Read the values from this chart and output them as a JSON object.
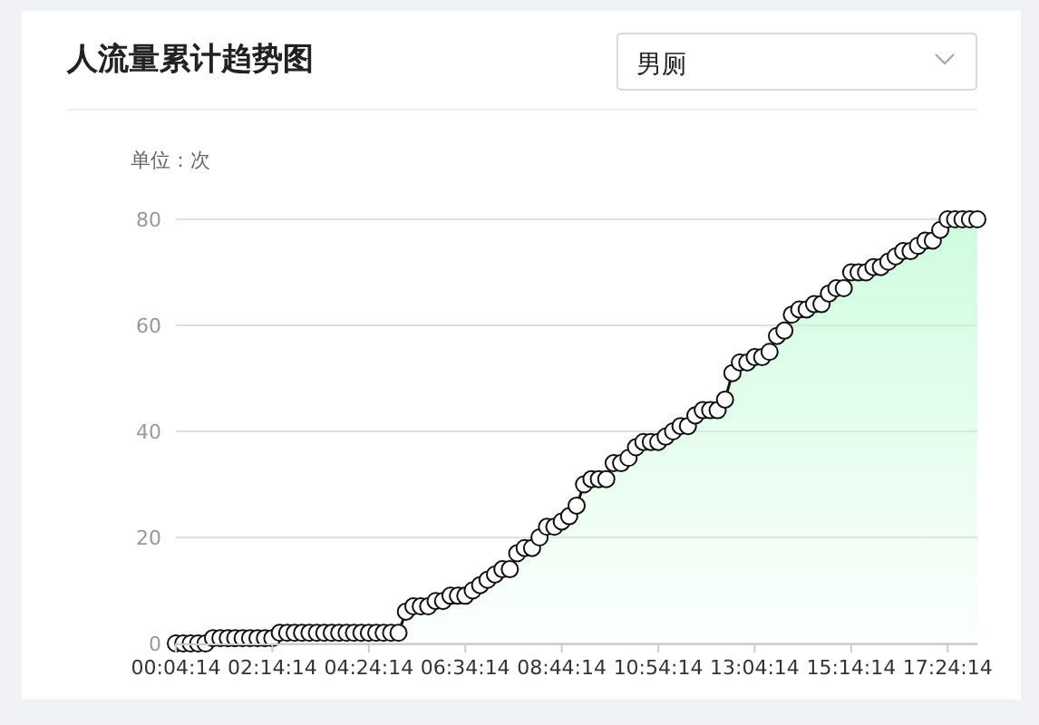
{
  "chart_data": {
    "type": "area",
    "title": "人流量累计趋势图",
    "subtitle": "男厕",
    "ylabel": "单位：次",
    "categories": [
      "00:04:14",
      null,
      null,
      null,
      null,
      null,
      null,
      null,
      null,
      null,
      null,
      null,
      null,
      "02:14:14",
      null,
      null,
      null,
      null,
      null,
      null,
      null,
      null,
      null,
      null,
      null,
      null,
      "04:24:14",
      null,
      null,
      null,
      null,
      null,
      null,
      null,
      null,
      null,
      null,
      null,
      null,
      "06:34:14",
      null,
      null,
      null,
      null,
      null,
      null,
      null,
      null,
      null,
      null,
      null,
      null,
      "08:44:14",
      null,
      null,
      null,
      null,
      null,
      null,
      null,
      null,
      null,
      null,
      null,
      null,
      "10:54:14",
      null,
      null,
      null,
      null,
      null,
      null,
      null,
      null,
      null,
      null,
      null,
      null,
      "13:04:14",
      null,
      null,
      null,
      null,
      null,
      null,
      null,
      null,
      null,
      null,
      null,
      null,
      "15:14:14",
      null,
      null,
      null,
      null,
      null,
      null,
      null,
      null,
      null,
      null,
      null,
      null,
      "17:24:14",
      null,
      null,
      null,
      null
    ],
    "series": [
      {
        "color": "#c3fbd6",
        "values": [
          0,
          0,
          0,
          0,
          0,
          1,
          1,
          1,
          1,
          1,
          1,
          1,
          1,
          1,
          2,
          2,
          2,
          2,
          2,
          2,
          2,
          2,
          2,
          2,
          2,
          2,
          2,
          2,
          2,
          2,
          2,
          6,
          7,
          7,
          7,
          8,
          8,
          9,
          9,
          9,
          10,
          11,
          12,
          13,
          14,
          14,
          17,
          18,
          18,
          20,
          22,
          22,
          23,
          24,
          26,
          30,
          31,
          31,
          31,
          34,
          34,
          35,
          37,
          38,
          38,
          38,
          39,
          40,
          41,
          41,
          43,
          44,
          44,
          44,
          46,
          51,
          53,
          53,
          54,
          54,
          55,
          58,
          59,
          62,
          63,
          63,
          64,
          64,
          66,
          67,
          67,
          70,
          70,
          70,
          71,
          71,
          72,
          73,
          74,
          74,
          75,
          76,
          76,
          78,
          80,
          80,
          80,
          80,
          80
        ]
      }
    ],
    "ylim": [
      0,
      80
    ],
    "yticks": [
      0,
      20,
      40,
      60,
      80
    ],
    "grid": "y",
    "marker": "circle"
  }
}
